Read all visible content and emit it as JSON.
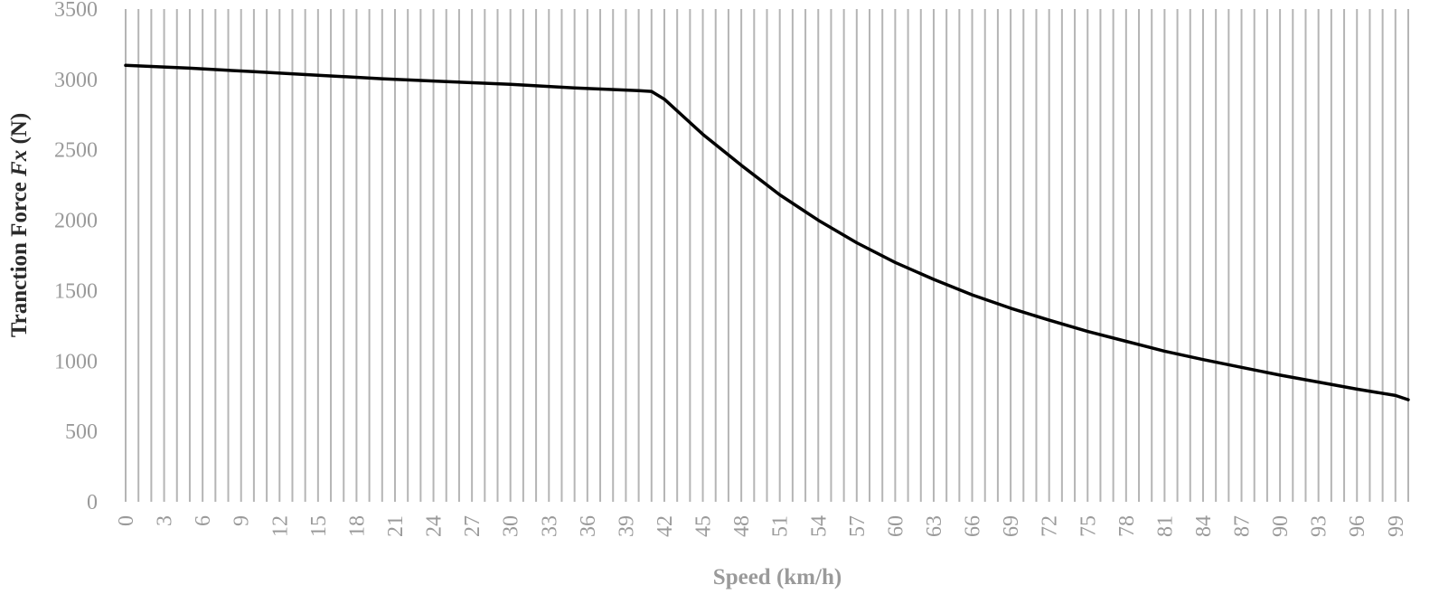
{
  "chart_data": {
    "type": "line",
    "title": "",
    "xlabel": "Speed (km/h)",
    "ylabel": {
      "prefix": "Tranction Force ",
      "symbol": "Fx",
      "suffix": " (N)"
    },
    "x_range": [
      0,
      100
    ],
    "x_step": 1,
    "x_tick_labels": [
      "0",
      "3",
      "6",
      "9",
      "12",
      "15",
      "18",
      "21",
      "24",
      "27",
      "30",
      "33",
      "36",
      "39",
      "42",
      "45",
      "48",
      "51",
      "54",
      "57",
      "60",
      "63",
      "66",
      "69",
      "72",
      "75",
      "78",
      "81",
      "84",
      "87",
      "90",
      "93",
      "96",
      "99"
    ],
    "ylim": [
      0,
      3500
    ],
    "y_ticks": [
      0,
      500,
      1000,
      1500,
      2000,
      2500,
      3000,
      3500
    ],
    "grid": "vertical",
    "series": [
      {
        "color": "#000000",
        "x": [
          0,
          5,
          10,
          15,
          20,
          25,
          30,
          35,
          40,
          41,
          42,
          45,
          48,
          51,
          54,
          57,
          60,
          63,
          66,
          69,
          72,
          75,
          78,
          81,
          84,
          87,
          90,
          93,
          96,
          99,
          100
        ],
        "values": [
          3100,
          3080,
          3055,
          3030,
          3005,
          2985,
          2965,
          2940,
          2920,
          2915,
          2860,
          2610,
          2390,
          2180,
          2000,
          1840,
          1700,
          1580,
          1470,
          1375,
          1290,
          1210,
          1140,
          1070,
          1010,
          955,
          900,
          850,
          800,
          755,
          725
        ]
      }
    ]
  }
}
